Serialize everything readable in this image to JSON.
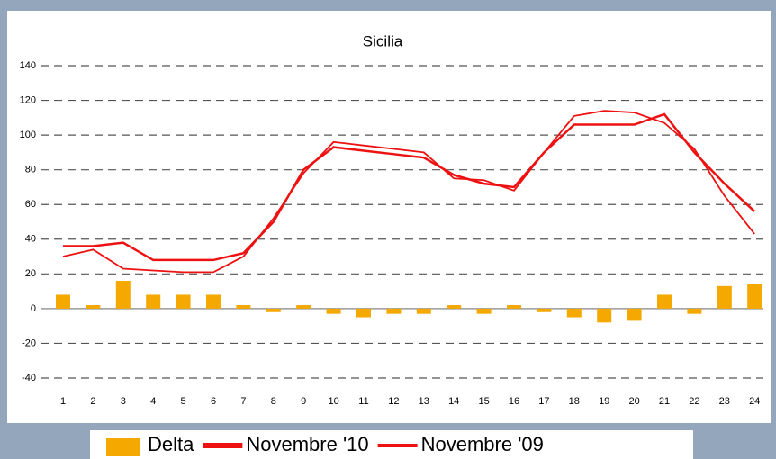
{
  "chart_data": {
    "type": "bar_line",
    "title": "Sicilia",
    "categories": [
      "1",
      "2",
      "3",
      "4",
      "5",
      "6",
      "7",
      "8",
      "9",
      "10",
      "11",
      "12",
      "13",
      "14",
      "15",
      "16",
      "17",
      "18",
      "19",
      "20",
      "21",
      "22",
      "23",
      "24"
    ],
    "series": [
      {
        "name": "Delta",
        "type": "bar",
        "color": "#f5a800",
        "values": [
          8,
          2,
          16,
          8,
          8,
          8,
          2,
          -2,
          2,
          -3,
          -5,
          -3,
          -3,
          2,
          -3,
          2,
          -2,
          -5,
          -8,
          -7,
          8,
          -3,
          13,
          14
        ]
      },
      {
        "name": "Novembre '10",
        "type": "line",
        "color": "#ee1111",
        "values": [
          36,
          36,
          38,
          28,
          28,
          28,
          32,
          50,
          80,
          93,
          91,
          89,
          87,
          77,
          72,
          70,
          90,
          106,
          106,
          106,
          112,
          90,
          72,
          56
        ]
      },
      {
        "name": "Novembre '09",
        "type": "line",
        "color": "#ee1111",
        "values": [
          30,
          34,
          23,
          22,
          21,
          21,
          30,
          52,
          78,
          96,
          94,
          92,
          90,
          75,
          74,
          68,
          90,
          111,
          114,
          113,
          107,
          92,
          65,
          43
        ]
      }
    ],
    "ylim": [
      -40,
      140
    ],
    "yticks": [
      -40,
      -20,
      0,
      20,
      40,
      60,
      80,
      100,
      120,
      140
    ],
    "grid": true
  }
}
